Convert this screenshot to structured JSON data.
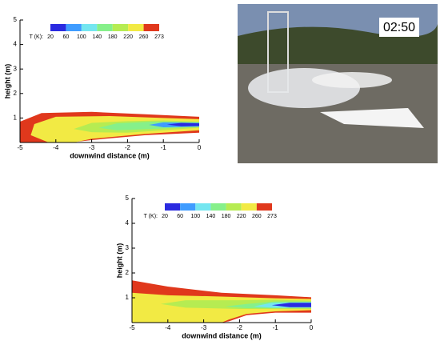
{
  "chart_data": [
    {
      "type": "contour",
      "xlabel": "downwind distance (m)",
      "ylabel": "height (m)",
      "xlim": [
        -5,
        0
      ],
      "ylim": [
        0,
        5
      ],
      "xticks": [
        -5,
        -4,
        -3,
        -2,
        -1,
        0
      ],
      "yticks": [
        1,
        2,
        3,
        4,
        5
      ],
      "colorbar": {
        "label": "T (K):",
        "ticks": [
          20,
          60,
          100,
          140,
          180,
          220,
          260,
          273
        ],
        "colors": [
          "#2a2ae0",
          "#3f9cff",
          "#74e6f0",
          "#86f08a",
          "#b6ec52",
          "#f2ea44",
          "#e0381c"
        ]
      }
    },
    {
      "type": "contour",
      "xlabel": "downwind distance (m)",
      "ylabel": "height (m)",
      "xlim": [
        -5,
        0
      ],
      "ylim": [
        0,
        5
      ],
      "xticks": [
        -5,
        -4,
        -3,
        -2,
        -1,
        0
      ],
      "yticks": [
        1,
        2,
        3,
        4,
        5
      ],
      "colorbar": {
        "label": "T (K):",
        "ticks": [
          20,
          60,
          100,
          140,
          180,
          220,
          260,
          273
        ],
        "colors": [
          "#2a2ae0",
          "#3f9cff",
          "#74e6f0",
          "#86f08a",
          "#b6ec52",
          "#f2ea44",
          "#e0381c"
        ]
      }
    }
  ],
  "photo": {
    "timestamp": "02:50"
  }
}
